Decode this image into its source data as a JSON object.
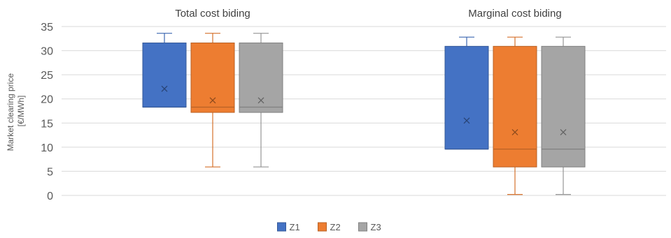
{
  "chart_data": {
    "type": "box",
    "ylabel_lines": [
      "Market clearing price",
      "[€/MWh]"
    ],
    "ylim": [
      0,
      35
    ],
    "yticks": [
      0,
      5,
      10,
      15,
      20,
      25,
      30,
      35
    ],
    "grid": true,
    "legend_position": "bottom",
    "groups": [
      "Total cost biding",
      "Marginal cost biding"
    ],
    "series": [
      {
        "name": "Z1",
        "color": "#4472C4",
        "boxes": [
          {
            "min": 18.3,
            "q1": 18.3,
            "median": 18.3,
            "q3": 31.6,
            "max": 33.6,
            "mean": 22.1
          },
          {
            "min": 9.6,
            "q1": 9.6,
            "median": 9.6,
            "q3": 30.9,
            "max": 32.8,
            "mean": 15.5
          }
        ]
      },
      {
        "name": "Z2",
        "color": "#ED7D31",
        "boxes": [
          {
            "min": 5.9,
            "q1": 17.2,
            "median": 18.3,
            "q3": 31.6,
            "max": 33.6,
            "mean": 19.7
          },
          {
            "min": 0.2,
            "q1": 5.9,
            "median": 9.6,
            "q3": 30.9,
            "max": 32.8,
            "mean": 13.1
          }
        ]
      },
      {
        "name": "Z3",
        "color": "#A5A5A5",
        "boxes": [
          {
            "min": 5.9,
            "q1": 17.2,
            "median": 18.3,
            "q3": 31.6,
            "max": 33.6,
            "mean": 19.7
          },
          {
            "min": 0.2,
            "q1": 5.9,
            "median": 9.6,
            "q3": 30.9,
            "max": 32.8,
            "mean": 13.1
          }
        ]
      }
    ]
  }
}
